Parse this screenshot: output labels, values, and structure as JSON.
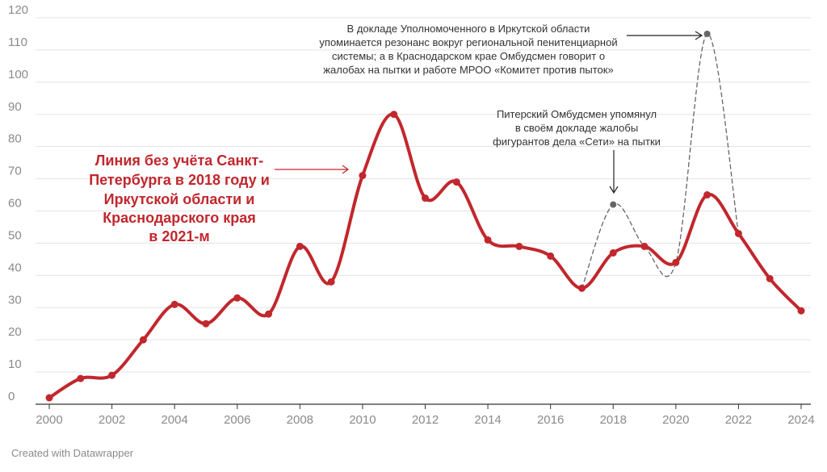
{
  "chart_data": {
    "type": "line",
    "title": "",
    "xlabel": "",
    "ylabel": "",
    "ylim": [
      0,
      120
    ],
    "yticks": [
      0,
      10,
      20,
      30,
      40,
      50,
      60,
      70,
      80,
      90,
      100,
      110,
      120
    ],
    "xlim": [
      2000,
      2024
    ],
    "xticks": [
      2000,
      2002,
      2004,
      2006,
      2008,
      2010,
      2012,
      2014,
      2016,
      2018,
      2020,
      2022,
      2024
    ],
    "grid": true,
    "series": [
      {
        "style": "solid",
        "color": "#c1272d",
        "points": [
          [
            2000,
            2
          ],
          [
            2001,
            8
          ],
          [
            2002,
            9
          ],
          [
            2003,
            20
          ],
          [
            2004,
            31
          ],
          [
            2005,
            25
          ],
          [
            2006,
            33
          ],
          [
            2007,
            28
          ],
          [
            2008,
            49
          ],
          [
            2009,
            38
          ],
          [
            2010,
            71
          ],
          [
            2011,
            90
          ],
          [
            2012,
            64
          ],
          [
            2013,
            69
          ],
          [
            2014,
            51
          ],
          [
            2015,
            49
          ],
          [
            2016,
            46
          ],
          [
            2017,
            36
          ],
          [
            2018,
            47
          ],
          [
            2019,
            49
          ],
          [
            2020,
            44
          ],
          [
            2021,
            65
          ],
          [
            2022,
            53
          ],
          [
            2023,
            39
          ],
          [
            2024,
            29
          ]
        ]
      },
      {
        "style": "dashed",
        "color": "#666666",
        "points": [
          [
            2017,
            36
          ],
          [
            2018,
            62
          ],
          [
            2019,
            49
          ],
          [
            2020,
            44
          ],
          [
            2021,
            115
          ],
          [
            2022,
            53
          ]
        ]
      }
    ],
    "annotations": {
      "red_label": [
        "Линия без учёта Санкт-",
        "Петербурга в 2018 году и",
        "Иркутской области и",
        "Краснодарского края",
        "в 2021-м"
      ],
      "spb_note": [
        "Питерский Омбудсмен упомянул",
        "в своём докладе жалобы",
        "фигурантов дела «Сети» на пытки"
      ],
      "irk_note": [
        "В докладе Уполномоченного в Иркутской области",
        "упоминается резонанс вокруг региональной пенитенциарной",
        "системы; а в Краснодарском крае Омбудсмен говорит о",
        "жалобах на пытки и работе МРОО «Комитет против пыток»"
      ]
    }
  },
  "credit": "Created with Datawrapper"
}
